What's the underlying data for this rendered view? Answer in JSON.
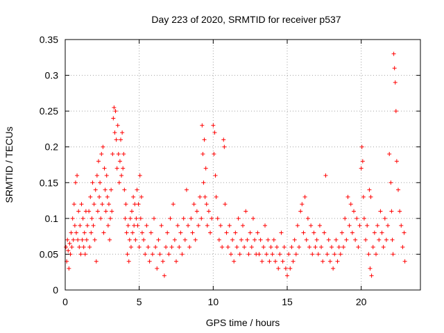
{
  "chart_data": {
    "type": "scatter",
    "title": "Day 223 of 2020, SRMTID for receiver p537",
    "xlabel": "GPS time / hours",
    "ylabel": "SRMTID / TECUs",
    "xlim": [
      0,
      24
    ],
    "ylim": [
      0,
      0.35
    ],
    "x_ticks": [
      0,
      5,
      10,
      15,
      20
    ],
    "x_tick_labels": [
      "0",
      "5",
      "10",
      "15",
      "20"
    ],
    "y_ticks": [
      0,
      0.05,
      0.1,
      0.15,
      0.2,
      0.25,
      0.3,
      0.35
    ],
    "y_tick_labels": [
      "0",
      "0.05",
      "0.1",
      "0.15",
      "0.2",
      "0.25",
      "0.3",
      "0.35"
    ],
    "grid": true,
    "marker": "+",
    "color": "#ff0000",
    "series": [
      {
        "name": "SRMTID",
        "points": [
          [
            0.05,
            0.06
          ],
          [
            0.1,
            0.04
          ],
          [
            0.15,
            0.07
          ],
          [
            0.2,
            0.055
          ],
          [
            0.25,
            0.03
          ],
          [
            0.3,
            0.065
          ],
          [
            0.35,
            0.05
          ],
          [
            0.4,
            0.08
          ],
          [
            0.45,
            0.06
          ],
          [
            0.5,
            0.1
          ],
          [
            0.55,
            0.07
          ],
          [
            0.6,
            0.12
          ],
          [
            0.65,
            0.09
          ],
          [
            0.7,
            0.15
          ],
          [
            0.75,
            0.08
          ],
          [
            0.8,
            0.16
          ],
          [
            0.85,
            0.07
          ],
          [
            0.9,
            0.11
          ],
          [
            0.95,
            0.06
          ],
          [
            1.0,
            0.09
          ],
          [
            1.05,
            0.05
          ],
          [
            1.1,
            0.12
          ],
          [
            1.15,
            0.07
          ],
          [
            1.2,
            0.1
          ],
          [
            1.25,
            0.06
          ],
          [
            1.3,
            0.08
          ],
          [
            1.35,
            0.05
          ],
          [
            1.4,
            0.11
          ],
          [
            1.45,
            0.07
          ],
          [
            1.5,
            0.09
          ],
          [
            1.6,
            0.11
          ],
          [
            1.65,
            0.06
          ],
          [
            1.7,
            0.13
          ],
          [
            1.75,
            0.08
          ],
          [
            1.8,
            0.1
          ],
          [
            1.85,
            0.15
          ],
          [
            1.9,
            0.09
          ],
          [
            1.95,
            0.12
          ],
          [
            2.0,
            0.07
          ],
          [
            2.05,
            0.14
          ],
          [
            2.1,
            0.04
          ],
          [
            2.15,
            0.16
          ],
          [
            2.2,
            0.11
          ],
          [
            2.25,
            0.18
          ],
          [
            2.3,
            0.13
          ],
          [
            2.35,
            0.15
          ],
          [
            2.4,
            0.1
          ],
          [
            2.45,
            0.19
          ],
          [
            2.5,
            0.12
          ],
          [
            2.55,
            0.2
          ],
          [
            2.6,
            0.08
          ],
          [
            2.65,
            0.17
          ],
          [
            2.7,
            0.14
          ],
          [
            2.75,
            0.11
          ],
          [
            2.8,
            0.16
          ],
          [
            2.85,
            0.13
          ],
          [
            2.9,
            0.09
          ],
          [
            2.95,
            0.12
          ],
          [
            3.0,
            0.07
          ],
          [
            3.05,
            0.1
          ],
          [
            3.1,
            0.14
          ],
          [
            3.15,
            0.11
          ],
          [
            3.2,
            0.19
          ],
          [
            3.25,
            0.24
          ],
          [
            3.3,
            0.255
          ],
          [
            3.35,
            0.22
          ],
          [
            3.4,
            0.25
          ],
          [
            3.45,
            0.21
          ],
          [
            3.5,
            0.17
          ],
          [
            3.55,
            0.23
          ],
          [
            3.6,
            0.19
          ],
          [
            3.65,
            0.15
          ],
          [
            3.7,
            0.18
          ],
          [
            3.75,
            0.21
          ],
          [
            3.8,
            0.16
          ],
          [
            3.85,
            0.22
          ],
          [
            3.9,
            0.17
          ],
          [
            3.95,
            0.19
          ],
          [
            4.0,
            0.14
          ],
          [
            4.05,
            0.1
          ],
          [
            4.1,
            0.12
          ],
          [
            4.15,
            0.08
          ],
          [
            4.2,
            0.05
          ],
          [
            4.25,
            0.09
          ],
          [
            4.3,
            0.04
          ],
          [
            4.35,
            0.07
          ],
          [
            4.4,
            0.1
          ],
          [
            4.45,
            0.06
          ],
          [
            4.5,
            0.11
          ],
          [
            4.55,
            0.08
          ],
          [
            4.6,
            0.13
          ],
          [
            4.65,
            0.09
          ],
          [
            4.7,
            0.12
          ],
          [
            4.75,
            0.07
          ],
          [
            4.8,
            0.1
          ],
          [
            4.85,
            0.14
          ],
          [
            4.9,
            0.09
          ],
          [
            4.95,
            0.12
          ],
          [
            5.0,
            0.06
          ],
          [
            5.05,
            0.16
          ],
          [
            5.1,
            0.1
          ],
          [
            5.15,
            0.13
          ],
          [
            5.2,
            0.08
          ],
          [
            5.3,
            0.07
          ],
          [
            5.4,
            0.05
          ],
          [
            5.5,
            0.09
          ],
          [
            5.6,
            0.06
          ],
          [
            5.7,
            0.04
          ],
          [
            5.8,
            0.08
          ],
          [
            5.9,
            0.05
          ],
          [
            6.0,
            0.1
          ],
          [
            6.1,
            0.06
          ],
          [
            6.2,
            0.03
          ],
          [
            6.3,
            0.07
          ],
          [
            6.4,
            0.05
          ],
          [
            6.5,
            0.09
          ],
          [
            6.6,
            0.04
          ],
          [
            6.7,
            0.02
          ],
          [
            6.8,
            0.06
          ],
          [
            6.9,
            0.08
          ],
          [
            7.0,
            0.05
          ],
          [
            7.1,
            0.1
          ],
          [
            7.2,
            0.06
          ],
          [
            7.3,
            0.12
          ],
          [
            7.4,
            0.07
          ],
          [
            7.5,
            0.04
          ],
          [
            7.6,
            0.09
          ],
          [
            7.7,
            0.06
          ],
          [
            7.8,
            0.08
          ],
          [
            7.9,
            0.05
          ],
          [
            8.0,
            0.1
          ],
          [
            8.1,
            0.07
          ],
          [
            8.2,
            0.14
          ],
          [
            8.3,
            0.09
          ],
          [
            8.4,
            0.06
          ],
          [
            8.5,
            0.1
          ],
          [
            8.6,
            0.08
          ],
          [
            8.7,
            0.12
          ],
          [
            8.8,
            0.07
          ],
          [
            8.9,
            0.11
          ],
          [
            9.0,
            0.09
          ],
          [
            9.1,
            0.13
          ],
          [
            9.2,
            0.1
          ],
          [
            9.25,
            0.23
          ],
          [
            9.3,
            0.19
          ],
          [
            9.35,
            0.15
          ],
          [
            9.4,
            0.21
          ],
          [
            9.45,
            0.13
          ],
          [
            9.5,
            0.17
          ],
          [
            9.55,
            0.12
          ],
          [
            9.6,
            0.09
          ],
          [
            9.7,
            0.11
          ],
          [
            9.8,
            0.08
          ],
          [
            9.9,
            0.1
          ],
          [
            10.0,
            0.23
          ],
          [
            10.05,
            0.19
          ],
          [
            10.1,
            0.22
          ],
          [
            10.15,
            0.16
          ],
          [
            10.2,
            0.13
          ],
          [
            10.3,
            0.1
          ],
          [
            10.4,
            0.07
          ],
          [
            10.5,
            0.09
          ],
          [
            10.6,
            0.06
          ],
          [
            10.7,
            0.21
          ],
          [
            10.75,
            0.2
          ],
          [
            10.8,
            0.12
          ],
          [
            10.9,
            0.08
          ],
          [
            11.0,
            0.06
          ],
          [
            11.1,
            0.09
          ],
          [
            11.2,
            0.05
          ],
          [
            11.3,
            0.07
          ],
          [
            11.4,
            0.04
          ],
          [
            11.5,
            0.08
          ],
          [
            11.6,
            0.06
          ],
          [
            11.7,
            0.1
          ],
          [
            11.8,
            0.05
          ],
          [
            11.9,
            0.07
          ],
          [
            12.0,
            0.09
          ],
          [
            12.1,
            0.06
          ],
          [
            12.2,
            0.11
          ],
          [
            12.3,
            0.07
          ],
          [
            12.4,
            0.05
          ],
          [
            12.5,
            0.08
          ],
          [
            12.6,
            0.06
          ],
          [
            12.7,
            0.1
          ],
          [
            12.8,
            0.07
          ],
          [
            12.9,
            0.05
          ],
          [
            13.0,
            0.08
          ],
          [
            13.1,
            0.05
          ],
          [
            13.2,
            0.07
          ],
          [
            13.3,
            0.04
          ],
          [
            13.4,
            0.06
          ],
          [
            13.5,
            0.09
          ],
          [
            13.6,
            0.05
          ],
          [
            13.7,
            0.07
          ],
          [
            13.8,
            0.04
          ],
          [
            13.9,
            0.06
          ],
          [
            14.0,
            0.05
          ],
          [
            14.1,
            0.07
          ],
          [
            14.2,
            0.04
          ],
          [
            14.3,
            0.06
          ],
          [
            14.4,
            0.03
          ],
          [
            14.5,
            0.05
          ],
          [
            14.6,
            0.08
          ],
          [
            14.7,
            0.04
          ],
          [
            14.8,
            0.06
          ],
          [
            14.9,
            0.03
          ],
          [
            15.0,
            0.02
          ],
          [
            15.1,
            0.05
          ],
          [
            15.2,
            0.03
          ],
          [
            15.3,
            0.06
          ],
          [
            15.4,
            0.04
          ],
          [
            15.5,
            0.07
          ],
          [
            15.6,
            0.05
          ],
          [
            15.7,
            0.09
          ],
          [
            15.8,
            0.06
          ],
          [
            15.9,
            0.11
          ],
          [
            16.0,
            0.12
          ],
          [
            16.1,
            0.08
          ],
          [
            16.2,
            0.13
          ],
          [
            16.3,
            0.07
          ],
          [
            16.4,
            0.1
          ],
          [
            16.5,
            0.06
          ],
          [
            16.6,
            0.09
          ],
          [
            16.7,
            0.05
          ],
          [
            16.8,
            0.08
          ],
          [
            16.9,
            0.06
          ],
          [
            17.0,
            0.07
          ],
          [
            17.1,
            0.05
          ],
          [
            17.2,
            0.09
          ],
          [
            17.3,
            0.06
          ],
          [
            17.4,
            0.04
          ],
          [
            17.5,
            0.08
          ],
          [
            17.6,
            0.16
          ],
          [
            17.7,
            0.05
          ],
          [
            17.8,
            0.07
          ],
          [
            17.9,
            0.04
          ],
          [
            18.0,
            0.06
          ],
          [
            18.1,
            0.03
          ],
          [
            18.2,
            0.05
          ],
          [
            18.3,
            0.07
          ],
          [
            18.4,
            0.04
          ],
          [
            18.5,
            0.06
          ],
          [
            18.6,
            0.05
          ],
          [
            18.7,
            0.08
          ],
          [
            18.8,
            0.06
          ],
          [
            18.9,
            0.1
          ],
          [
            19.0,
            0.07
          ],
          [
            19.1,
            0.13
          ],
          [
            19.2,
            0.09
          ],
          [
            19.3,
            0.12
          ],
          [
            19.4,
            0.08
          ],
          [
            19.5,
            0.11
          ],
          [
            19.6,
            0.07
          ],
          [
            19.7,
            0.1
          ],
          [
            19.8,
            0.06
          ],
          [
            19.9,
            0.09
          ],
          [
            20.0,
            0.17
          ],
          [
            20.05,
            0.2
          ],
          [
            20.1,
            0.18
          ],
          [
            20.15,
            0.13
          ],
          [
            20.2,
            0.1
          ],
          [
            20.3,
            0.07
          ],
          [
            20.4,
            0.09
          ],
          [
            20.5,
            0.05
          ],
          [
            20.55,
            0.14
          ],
          [
            20.6,
            0.03
          ],
          [
            20.65,
            0.13
          ],
          [
            20.7,
            0.02
          ],
          [
            20.8,
            0.06
          ],
          [
            20.9,
            0.08
          ],
          [
            21.0,
            0.05
          ],
          [
            21.1,
            0.09
          ],
          [
            21.2,
            0.07
          ],
          [
            21.3,
            0.11
          ],
          [
            21.4,
            0.08
          ],
          [
            21.5,
            0.06
          ],
          [
            21.6,
            0.1
          ],
          [
            21.7,
            0.07
          ],
          [
            21.8,
            0.09
          ],
          [
            21.9,
            0.19
          ],
          [
            22.0,
            0.15
          ],
          [
            22.05,
            0.11
          ],
          [
            22.1,
            0.07
          ],
          [
            22.15,
            0.05
          ],
          [
            22.2,
            0.33
          ],
          [
            22.25,
            0.31
          ],
          [
            22.3,
            0.29
          ],
          [
            22.35,
            0.25
          ],
          [
            22.4,
            0.18
          ],
          [
            22.5,
            0.14
          ],
          [
            22.6,
            0.11
          ],
          [
            22.7,
            0.09
          ],
          [
            22.8,
            0.06
          ],
          [
            22.9,
            0.08
          ],
          [
            22.95,
            0.04
          ]
        ]
      }
    ]
  }
}
